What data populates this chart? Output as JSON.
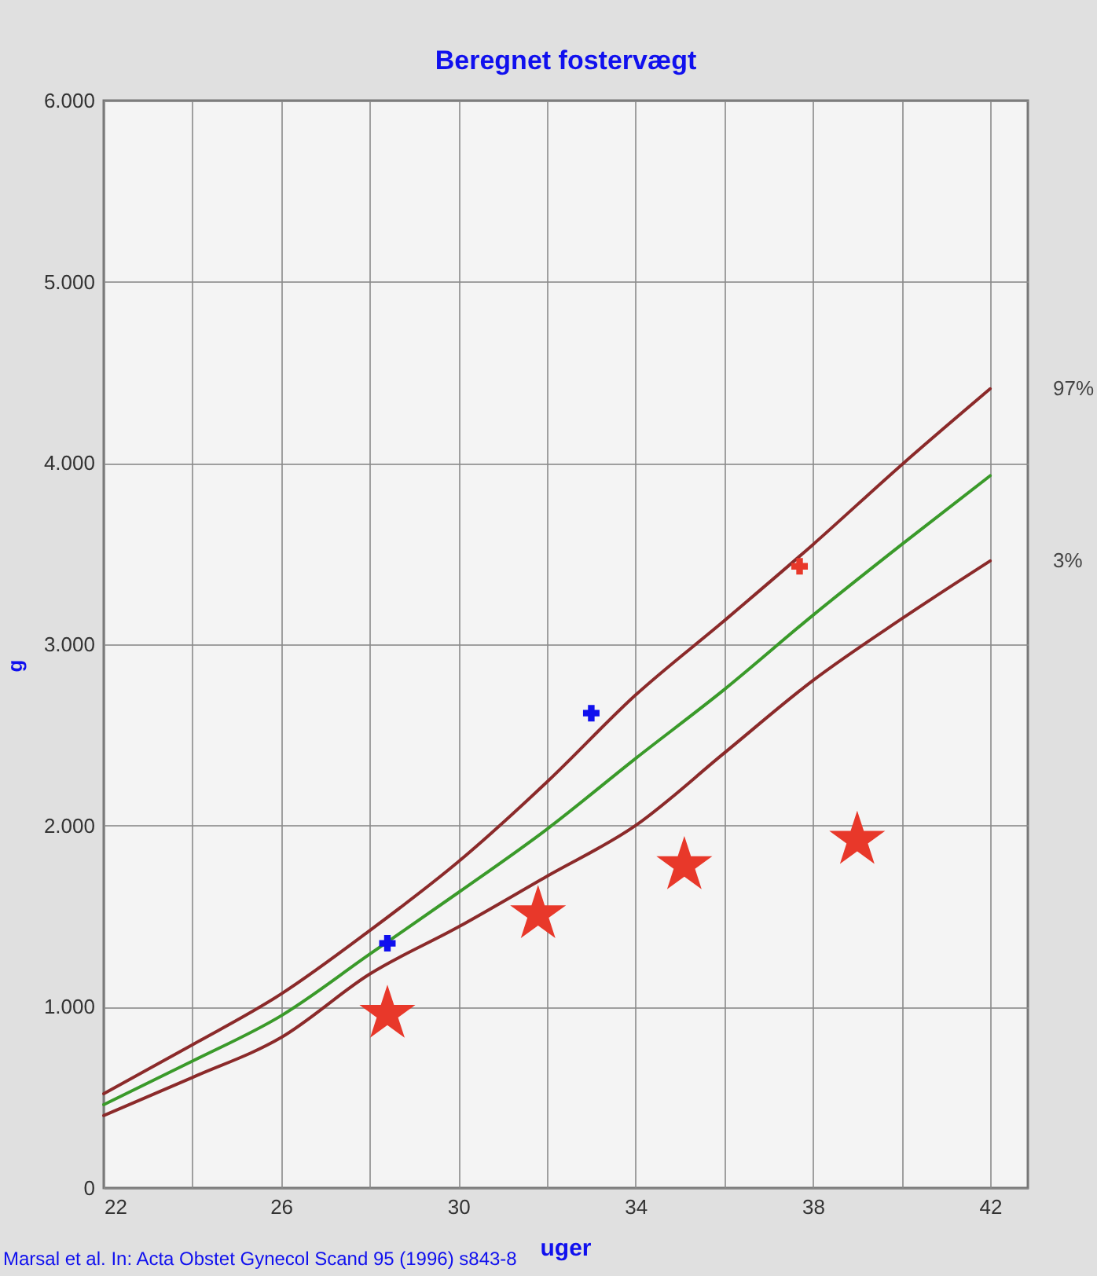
{
  "chart_data": {
    "type": "line",
    "title": "Beregnet fostervægt",
    "xlabel": "uger",
    "ylabel": "g",
    "xlim": [
      22,
      42.85
    ],
    "ylim": [
      0,
      6000
    ],
    "xticks": [
      22,
      {
        "value": 24,
        "label": null
      },
      26,
      {
        "value": 28,
        "label": null
      },
      30,
      {
        "value": 32,
        "label": null
      },
      34,
      {
        "value": 36,
        "label": null
      },
      38,
      {
        "value": 40,
        "label": null
      },
      42
    ],
    "yticks": [
      0,
      {
        "value": 1000,
        "label": "1.000"
      },
      {
        "value": 2000,
        "label": "2.000"
      },
      {
        "value": 3000,
        "label": "3.000"
      },
      {
        "value": 4000,
        "label": "4.000"
      },
      {
        "value": 5000,
        "label": "5.000"
      },
      {
        "value": 6000,
        "label": "6.000"
      }
    ],
    "grid": true,
    "line_style": "solid",
    "series": [
      {
        "name": "97%",
        "color": "#8b2a2a",
        "x": [
          22,
          24,
          26,
          28,
          30,
          32,
          34,
          36,
          38,
          40,
          42
        ],
        "values": [
          520,
          790,
          1070,
          1420,
          1800,
          2240,
          2720,
          3130,
          3550,
          3990,
          4410
        ]
      },
      {
        "color": "#3a9a2a",
        "x": [
          22,
          24,
          26,
          28,
          30,
          32,
          34,
          36,
          38,
          40,
          42
        ],
        "values": [
          460,
          700,
          950,
          1290,
          1630,
          1980,
          2370,
          2750,
          3160,
          3550,
          3930
        ]
      },
      {
        "name": "3%",
        "color": "#8b2a2a",
        "x": [
          22,
          24,
          26,
          28,
          30,
          32,
          34,
          36,
          38,
          40,
          42
        ],
        "values": [
          400,
          610,
          830,
          1180,
          1440,
          1720,
          2000,
          2400,
          2800,
          3140,
          3460
        ]
      },
      {
        "type": "scatter",
        "marker": "cross",
        "colors": [
          "#1010ee",
          "#1010ee",
          "#e8382a"
        ],
        "x": [
          28.4,
          33.0,
          37.7
        ],
        "values": [
          1350,
          2620,
          3430
        ]
      },
      {
        "type": "scatter",
        "marker": "star",
        "color": "#e8382a",
        "x": [
          28.4,
          31.8,
          35.1,
          39.0
        ],
        "values": [
          960,
          1510,
          1780,
          1920
        ]
      }
    ],
    "annotations": [
      "Marsal et al. In: Acta Obstet Gynecol Scand 95 (1996) s843-8"
    ]
  }
}
